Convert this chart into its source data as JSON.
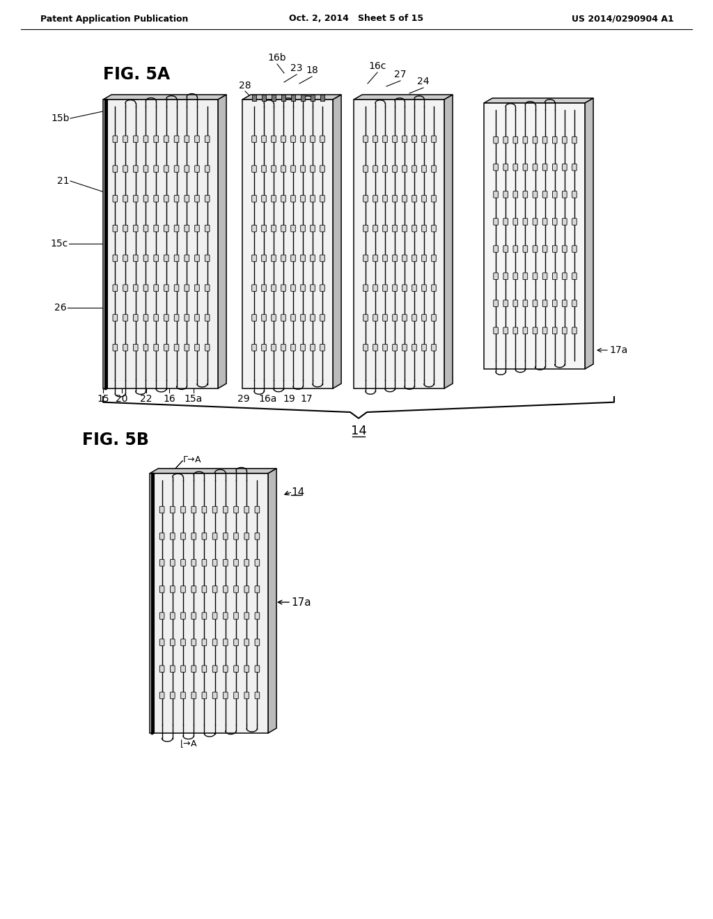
{
  "header_left": "Patent Application Publication",
  "header_mid": "Oct. 2, 2014   Sheet 5 of 15",
  "header_right": "US 2014/0290904 A1",
  "fig5a_label": "FIG. 5A",
  "fig5b_label": "FIG. 5B",
  "bg_color": "#ffffff"
}
